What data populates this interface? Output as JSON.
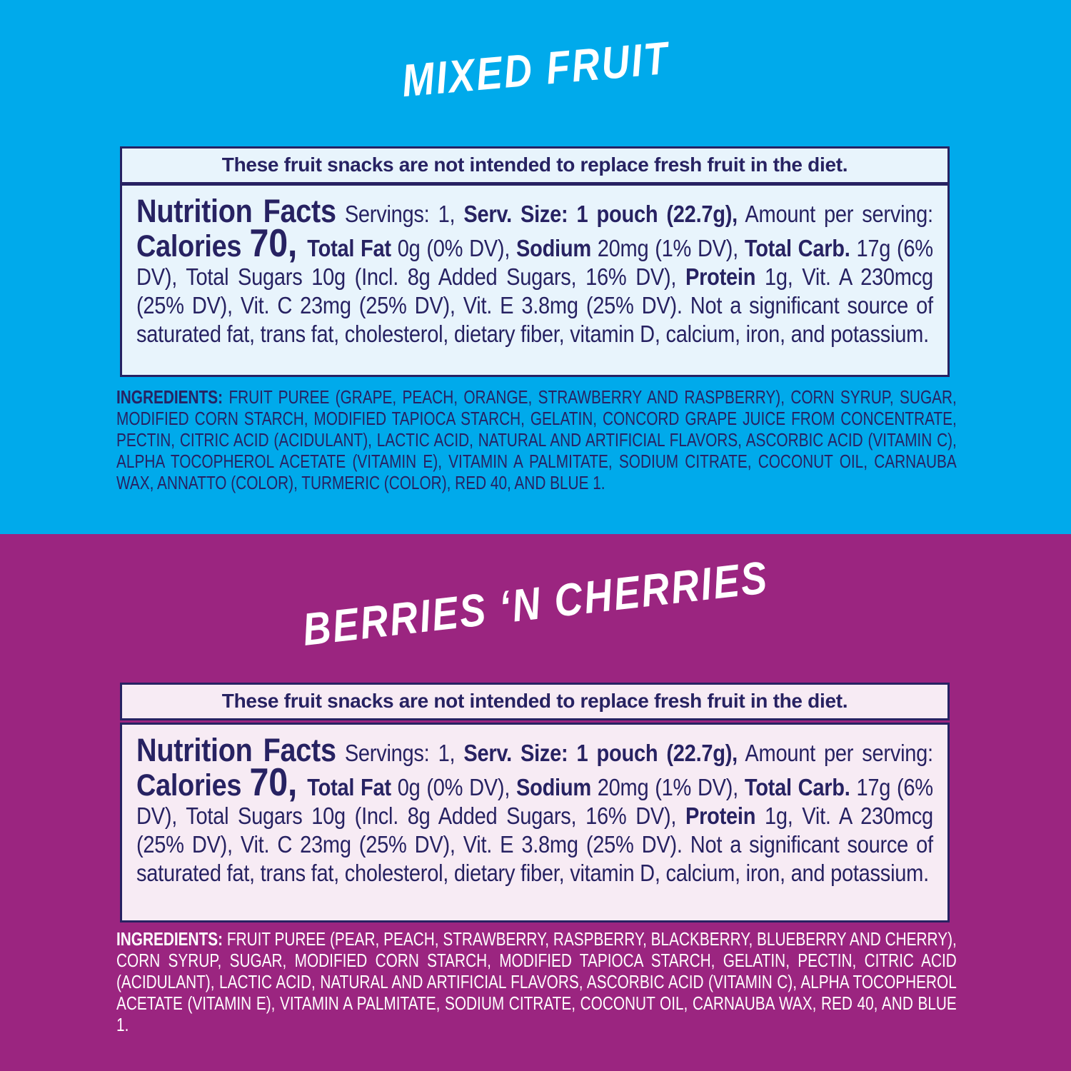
{
  "panels": [
    {
      "id": "mixed-fruit",
      "title": "MIXED FRUIT",
      "disclaimer": "These fruit snacks are not intended to replace fresh fruit in the diet.",
      "ingredients_segments": [
        {
          "t": "INGREDIENTS: ",
          "s": "b"
        },
        {
          "t": "FRUIT PUREE (GRAPE, PEACH, ORANGE, STRAWBERRY AND RASPBERRY), CORN SYRUP, SUGAR, MODIFIED CORN STARCH, MODIFIED TAPIOCA STARCH, GELATIN, CONCORD GRAPE JUICE FROM CONCENTRATE, PECTIN, CITRIC ACID (ACIDULANT), LACTIC ACID, NATURAL AND ARTIFICIAL FLAVORS, ASCORBIC ACID (VITAMIN C), ALPHA TOCOPHEROL ACETATE (VITAMIN E), VITAMIN A PALMITATE, SODIUM CITRATE, COCONUT OIL, CARNAUBA WAX, ANNATTO (COLOR), TURMERIC (COLOR), RED 40, AND BLUE 1.",
          "s": "r"
        }
      ],
      "colors": {
        "background": "#00AAEB",
        "box_background": "#E8F4FC",
        "box_border": "#272262",
        "box_text": "#272262",
        "title_text": "#FFFFFF",
        "ingredients_text": "#272262"
      }
    },
    {
      "id": "berries-n-cherries",
      "title": "BERRIES ‘N CHERRIES",
      "disclaimer": "These fruit snacks are not intended to replace fresh fruit in the diet.",
      "ingredients_segments": [
        {
          "t": "INGREDIENTS: ",
          "s": "b"
        },
        {
          "t": "FRUIT PUREE (PEAR, PEACH, STRAWBERRY, RASPBERRY, BLACKBERRY, BLUEBERRY AND CHERRY), CORN SYRUP, SUGAR, MODIFIED CORN STARCH, MODIFIED TAPIOCA STARCH, GELATIN, PECTIN, CITRIC ACID (ACIDULANT), LACTIC ACID, NATURAL AND ARTIFICIAL FLAVORS, ASCORBIC ACID (VITAMIN C), ALPHA TOCOPHEROL ACETATE (VITAMIN E), VITAMIN A PALMITATE, SODIUM CITRATE, COCONUT OIL, CARNAUBA WAX, RED 40, AND BLUE 1.",
          "s": "r"
        }
      ],
      "colors": {
        "background": "#9B2580",
        "box_background": "#F7EBF4",
        "box_border": "#272262",
        "box_text": "#272262",
        "title_text": "#FFFFFF",
        "ingredients_text": "#FFFFFF"
      }
    }
  ],
  "nutrition_facts": {
    "segments": [
      {
        "t": "Nutrition Facts",
        "s": "xl"
      },
      {
        "t": " Servings: 1, ",
        "s": "r"
      },
      {
        "t": "Serv. Size: 1 pouch (22.7g),",
        "s": "b"
      },
      {
        "t": " Amount per serving: ",
        "s": "r"
      },
      {
        "t": "Calories ",
        "s": "lg"
      },
      {
        "t": "70, ",
        "s": "xxl"
      },
      {
        "t": "Total Fat",
        "s": "b"
      },
      {
        "t": " 0g (0% DV), ",
        "s": "r"
      },
      {
        "t": "Sodium",
        "s": "b"
      },
      {
        "t": " 20mg (1% DV), ",
        "s": "r"
      },
      {
        "t": "Total Carb.",
        "s": "b"
      },
      {
        "t": " 17g (6% DV), Total Sugars 10g (Incl. 8g Added Sugars, 16% DV), ",
        "s": "r"
      },
      {
        "t": "Protein",
        "s": "b"
      },
      {
        "t": " 1g, Vit. A 230mcg (25% DV), Vit. C 23mg (25% DV), Vit. E 3.8mg (25% DV). Not a significant source of saturated fat, trans fat, cholesterol, dietary fiber, vitamin D, calcium, iron, and potassium.",
        "s": "r"
      }
    ]
  }
}
